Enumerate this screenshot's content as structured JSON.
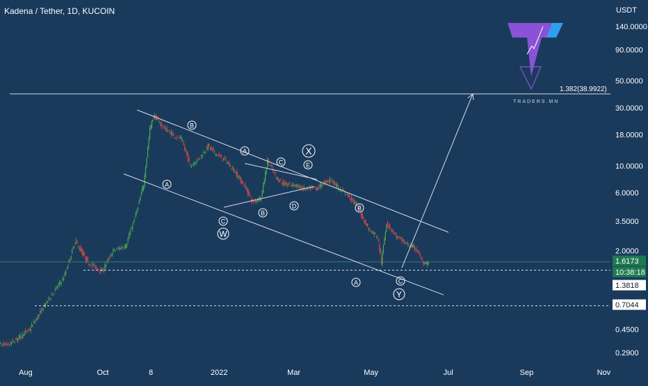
{
  "header": {
    "title": "Kadena / Tether, 1D, KUCOIN",
    "currency": "USDT"
  },
  "logo": {
    "caption": "TRADERS.MN"
  },
  "colors": {
    "background": "#1a3a5c",
    "line": "#d7dee7",
    "candle_up": "#4caf50",
    "candle_down": "#e04848",
    "label_green": "#4a8f57",
    "label_white": "#ffffff",
    "logo_purple": "#8a52d6",
    "logo_blue": "#2f9ef0"
  },
  "price_axis": {
    "ticks": [
      "140.0000",
      "90.0000",
      "50.0000",
      "30.0000",
      "18.0000",
      "10.0000",
      "6.0000",
      "3.5000",
      "2.0000",
      "0.4500",
      "0.2900"
    ],
    "current_price": "1.6173",
    "countdown": "10:38:18",
    "level_1": "1.3818",
    "level_2": "0.7044"
  },
  "time_axis": {
    "ticks": [
      "Aug",
      "Oct",
      "8",
      "2022",
      "Mar",
      "May",
      "Jul",
      "Sep",
      "Nov"
    ]
  },
  "annotations": {
    "fib_label": "1.382(38.9922)",
    "waves": [
      "B",
      "A",
      "C",
      "X",
      "E",
      "A",
      "C",
      "W",
      "B",
      "D",
      "B",
      "A",
      "C",
      "Y"
    ]
  },
  "chart_data": {
    "type": "candlestick",
    "title": "Kadena / Tether, 1D, KUCOIN",
    "scale": "log",
    "ylim": [
      0.25,
      180
    ],
    "xlim": [
      "2021-07-01",
      "2022-11-30"
    ],
    "series": [
      {
        "values": [
          [
            "2021-07-01",
            0.33
          ],
          [
            "2021-07-20",
            0.34
          ],
          [
            "2021-08-05",
            0.45
          ],
          [
            "2021-08-20",
            0.8
          ],
          [
            "2021-09-01",
            1.2
          ],
          [
            "2021-09-10",
            2.4
          ],
          [
            "2021-09-20",
            1.6
          ],
          [
            "2021-10-01",
            1.35
          ],
          [
            "2021-10-10",
            2.0
          ],
          [
            "2021-10-20",
            2.2
          ],
          [
            "2021-10-28",
            4.0
          ],
          [
            "2021-11-03",
            7.0
          ],
          [
            "2021-11-08",
            20.0
          ],
          [
            "2021-11-11",
            26.0
          ],
          [
            "2021-11-18",
            21.0
          ],
          [
            "2021-11-26",
            18.0
          ],
          [
            "2021-12-03",
            16.5
          ],
          [
            "2021-12-10",
            10.0
          ],
          [
            "2021-12-17",
            11.5
          ],
          [
            "2021-12-24",
            14.5
          ],
          [
            "2021-12-30",
            12.5
          ],
          [
            "2022-01-07",
            11.0
          ],
          [
            "2022-01-14",
            9.0
          ],
          [
            "2022-01-23",
            6.5
          ],
          [
            "2022-01-28",
            5.0
          ],
          [
            "2022-02-04",
            5.5
          ],
          [
            "2022-02-09",
            11.0
          ],
          [
            "2022-02-16",
            8.0
          ],
          [
            "2022-02-22",
            7.0
          ],
          [
            "2022-03-01",
            7.0
          ],
          [
            "2022-03-10",
            6.4
          ],
          [
            "2022-03-20",
            6.5
          ],
          [
            "2022-03-28",
            7.5
          ],
          [
            "2022-04-01",
            7.6
          ],
          [
            "2022-04-06",
            6.5
          ],
          [
            "2022-04-13",
            5.8
          ],
          [
            "2022-04-20",
            4.8
          ],
          [
            "2022-04-30",
            3.0
          ],
          [
            "2022-05-07",
            2.6
          ],
          [
            "2022-05-10",
            1.6
          ],
          [
            "2022-05-14",
            3.4
          ],
          [
            "2022-05-22",
            2.6
          ],
          [
            "2022-05-29",
            2.3
          ],
          [
            "2022-06-07",
            2.05
          ],
          [
            "2022-06-13",
            1.5
          ],
          [
            "2022-06-16",
            1.6173
          ]
        ]
      }
    ]
  }
}
